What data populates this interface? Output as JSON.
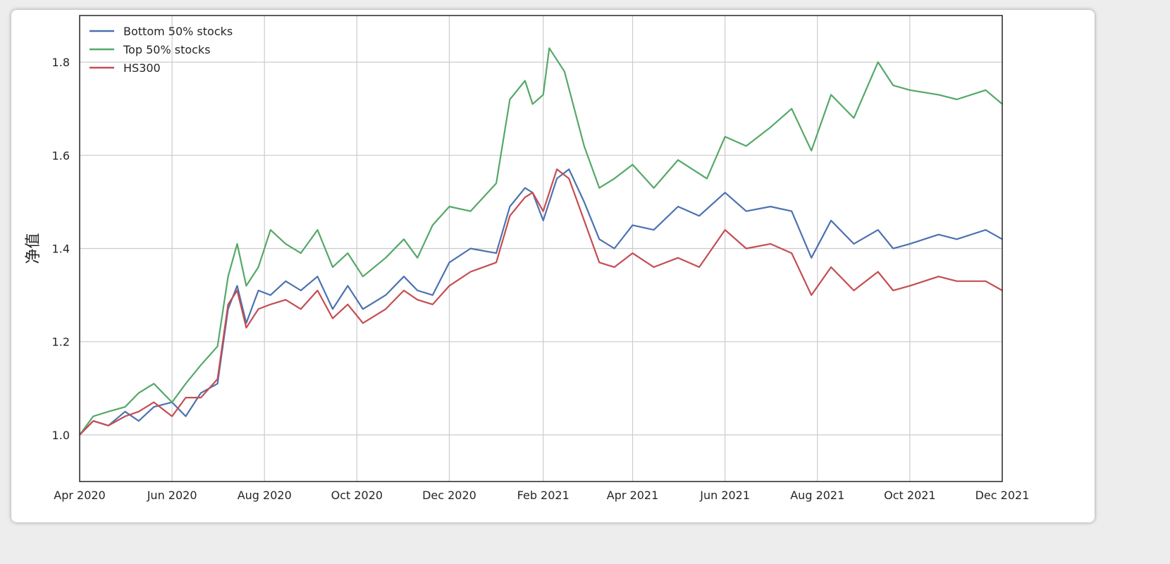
{
  "chart_data": {
    "type": "line",
    "title": "",
    "xlabel": "",
    "ylabel": "净值",
    "ylim": [
      0.9,
      1.9
    ],
    "xlim": [
      "2020-04-01",
      "2021-12-01"
    ],
    "grid": true,
    "legend_position": "top-left",
    "x_ticks": [
      {
        "date": "2020-04-01",
        "label": "Apr 2020"
      },
      {
        "date": "2020-06-01",
        "label": "Jun 2020"
      },
      {
        "date": "2020-08-01",
        "label": "Aug 2020"
      },
      {
        "date": "2020-10-01",
        "label": "Oct 2020"
      },
      {
        "date": "2020-12-01",
        "label": "Dec 2020"
      },
      {
        "date": "2021-02-01",
        "label": "Feb 2021"
      },
      {
        "date": "2021-04-01",
        "label": "Apr 2021"
      },
      {
        "date": "2021-06-01",
        "label": "Jun 2021"
      },
      {
        "date": "2021-08-01",
        "label": "Aug 2021"
      },
      {
        "date": "2021-10-01",
        "label": "Oct 2021"
      },
      {
        "date": "2021-12-01",
        "label": "Dec 2021"
      }
    ],
    "y_ticks": [
      1.0,
      1.2,
      1.4,
      1.6,
      1.8
    ],
    "series": [
      {
        "name": "Bottom 50% stocks",
        "color": "#4c72b0",
        "points": [
          [
            "2020-04-01",
            1.0
          ],
          [
            "2020-04-10",
            1.03
          ],
          [
            "2020-04-20",
            1.02
          ],
          [
            "2020-05-01",
            1.05
          ],
          [
            "2020-05-10",
            1.03
          ],
          [
            "2020-05-20",
            1.06
          ],
          [
            "2020-06-01",
            1.07
          ],
          [
            "2020-06-10",
            1.04
          ],
          [
            "2020-06-20",
            1.09
          ],
          [
            "2020-07-01",
            1.11
          ],
          [
            "2020-07-08",
            1.27
          ],
          [
            "2020-07-14",
            1.32
          ],
          [
            "2020-07-20",
            1.24
          ],
          [
            "2020-07-28",
            1.31
          ],
          [
            "2020-08-05",
            1.3
          ],
          [
            "2020-08-15",
            1.33
          ],
          [
            "2020-08-25",
            1.31
          ],
          [
            "2020-09-05",
            1.34
          ],
          [
            "2020-09-15",
            1.27
          ],
          [
            "2020-09-25",
            1.32
          ],
          [
            "2020-10-05",
            1.27
          ],
          [
            "2020-10-20",
            1.3
          ],
          [
            "2020-11-01",
            1.34
          ],
          [
            "2020-11-10",
            1.31
          ],
          [
            "2020-11-20",
            1.3
          ],
          [
            "2020-12-01",
            1.37
          ],
          [
            "2020-12-15",
            1.4
          ],
          [
            "2021-01-01",
            1.39
          ],
          [
            "2021-01-10",
            1.49
          ],
          [
            "2021-01-20",
            1.53
          ],
          [
            "2021-01-25",
            1.52
          ],
          [
            "2021-02-01",
            1.46
          ],
          [
            "2021-02-10",
            1.55
          ],
          [
            "2021-02-18",
            1.57
          ],
          [
            "2021-02-28",
            1.5
          ],
          [
            "2021-03-10",
            1.42
          ],
          [
            "2021-03-20",
            1.4
          ],
          [
            "2021-04-01",
            1.45
          ],
          [
            "2021-04-15",
            1.44
          ],
          [
            "2021-05-01",
            1.49
          ],
          [
            "2021-05-15",
            1.47
          ],
          [
            "2021-06-01",
            1.52
          ],
          [
            "2021-06-15",
            1.48
          ],
          [
            "2021-07-01",
            1.49
          ],
          [
            "2021-07-15",
            1.48
          ],
          [
            "2021-07-28",
            1.38
          ],
          [
            "2021-08-10",
            1.46
          ],
          [
            "2021-08-25",
            1.41
          ],
          [
            "2021-09-10",
            1.44
          ],
          [
            "2021-09-20",
            1.4
          ],
          [
            "2021-10-01",
            1.41
          ],
          [
            "2021-10-20",
            1.43
          ],
          [
            "2021-11-01",
            1.42
          ],
          [
            "2021-11-20",
            1.44
          ],
          [
            "2021-12-01",
            1.42
          ]
        ]
      },
      {
        "name": "Top 50% stocks",
        "color": "#55a868",
        "points": [
          [
            "2020-04-01",
            1.0
          ],
          [
            "2020-04-10",
            1.04
          ],
          [
            "2020-04-20",
            1.05
          ],
          [
            "2020-05-01",
            1.06
          ],
          [
            "2020-05-10",
            1.09
          ],
          [
            "2020-05-20",
            1.11
          ],
          [
            "2020-06-01",
            1.07
          ],
          [
            "2020-06-10",
            1.11
          ],
          [
            "2020-06-20",
            1.15
          ],
          [
            "2020-07-01",
            1.19
          ],
          [
            "2020-07-08",
            1.34
          ],
          [
            "2020-07-14",
            1.41
          ],
          [
            "2020-07-20",
            1.32
          ],
          [
            "2020-07-28",
            1.36
          ],
          [
            "2020-08-05",
            1.44
          ],
          [
            "2020-08-15",
            1.41
          ],
          [
            "2020-08-25",
            1.39
          ],
          [
            "2020-09-05",
            1.44
          ],
          [
            "2020-09-15",
            1.36
          ],
          [
            "2020-09-25",
            1.39
          ],
          [
            "2020-10-05",
            1.34
          ],
          [
            "2020-10-20",
            1.38
          ],
          [
            "2020-11-01",
            1.42
          ],
          [
            "2020-11-10",
            1.38
          ],
          [
            "2020-11-20",
            1.45
          ],
          [
            "2020-12-01",
            1.49
          ],
          [
            "2020-12-15",
            1.48
          ],
          [
            "2021-01-01",
            1.54
          ],
          [
            "2021-01-10",
            1.72
          ],
          [
            "2021-01-20",
            1.76
          ],
          [
            "2021-01-25",
            1.71
          ],
          [
            "2021-02-01",
            1.73
          ],
          [
            "2021-02-05",
            1.83
          ],
          [
            "2021-02-15",
            1.78
          ],
          [
            "2021-02-28",
            1.62
          ],
          [
            "2021-03-10",
            1.53
          ],
          [
            "2021-03-20",
            1.55
          ],
          [
            "2021-04-01",
            1.58
          ],
          [
            "2021-04-15",
            1.53
          ],
          [
            "2021-05-01",
            1.59
          ],
          [
            "2021-05-20",
            1.55
          ],
          [
            "2021-06-01",
            1.64
          ],
          [
            "2021-06-15",
            1.62
          ],
          [
            "2021-07-01",
            1.66
          ],
          [
            "2021-07-15",
            1.7
          ],
          [
            "2021-07-28",
            1.61
          ],
          [
            "2021-08-10",
            1.73
          ],
          [
            "2021-08-25",
            1.68
          ],
          [
            "2021-09-10",
            1.8
          ],
          [
            "2021-09-20",
            1.75
          ],
          [
            "2021-10-01",
            1.74
          ],
          [
            "2021-10-20",
            1.73
          ],
          [
            "2021-11-01",
            1.72
          ],
          [
            "2021-11-20",
            1.74
          ],
          [
            "2021-12-01",
            1.71
          ]
        ]
      },
      {
        "name": "HS300",
        "color": "#c44e52",
        "points": [
          [
            "2020-04-01",
            1.0
          ],
          [
            "2020-04-10",
            1.03
          ],
          [
            "2020-04-20",
            1.02
          ],
          [
            "2020-05-01",
            1.04
          ],
          [
            "2020-05-10",
            1.05
          ],
          [
            "2020-05-20",
            1.07
          ],
          [
            "2020-06-01",
            1.04
          ],
          [
            "2020-06-10",
            1.08
          ],
          [
            "2020-06-20",
            1.08
          ],
          [
            "2020-07-01",
            1.12
          ],
          [
            "2020-07-08",
            1.28
          ],
          [
            "2020-07-14",
            1.31
          ],
          [
            "2020-07-20",
            1.23
          ],
          [
            "2020-07-28",
            1.27
          ],
          [
            "2020-08-05",
            1.28
          ],
          [
            "2020-08-15",
            1.29
          ],
          [
            "2020-08-25",
            1.27
          ],
          [
            "2020-09-05",
            1.31
          ],
          [
            "2020-09-15",
            1.25
          ],
          [
            "2020-09-25",
            1.28
          ],
          [
            "2020-10-05",
            1.24
          ],
          [
            "2020-10-20",
            1.27
          ],
          [
            "2020-11-01",
            1.31
          ],
          [
            "2020-11-10",
            1.29
          ],
          [
            "2020-11-20",
            1.28
          ],
          [
            "2020-12-01",
            1.32
          ],
          [
            "2020-12-15",
            1.35
          ],
          [
            "2021-01-01",
            1.37
          ],
          [
            "2021-01-10",
            1.47
          ],
          [
            "2021-01-20",
            1.51
          ],
          [
            "2021-01-25",
            1.52
          ],
          [
            "2021-02-01",
            1.48
          ],
          [
            "2021-02-10",
            1.57
          ],
          [
            "2021-02-18",
            1.55
          ],
          [
            "2021-02-28",
            1.46
          ],
          [
            "2021-03-10",
            1.37
          ],
          [
            "2021-03-20",
            1.36
          ],
          [
            "2021-04-01",
            1.39
          ],
          [
            "2021-04-15",
            1.36
          ],
          [
            "2021-05-01",
            1.38
          ],
          [
            "2021-05-15",
            1.36
          ],
          [
            "2021-06-01",
            1.44
          ],
          [
            "2021-06-15",
            1.4
          ],
          [
            "2021-07-01",
            1.41
          ],
          [
            "2021-07-15",
            1.39
          ],
          [
            "2021-07-28",
            1.3
          ],
          [
            "2021-08-10",
            1.36
          ],
          [
            "2021-08-25",
            1.31
          ],
          [
            "2021-09-10",
            1.35
          ],
          [
            "2021-09-20",
            1.31
          ],
          [
            "2021-10-01",
            1.32
          ],
          [
            "2021-10-20",
            1.34
          ],
          [
            "2021-11-01",
            1.33
          ],
          [
            "2021-11-20",
            1.33
          ],
          [
            "2021-12-01",
            1.31
          ]
        ]
      }
    ]
  }
}
